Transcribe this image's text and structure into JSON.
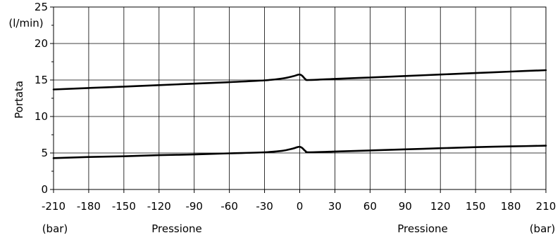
{
  "chart_data": {
    "type": "line",
    "ylabel": "Portata",
    "yunit": "(l/min)",
    "xlabel_left": "Pressione",
    "xlabel_right": "Pressione",
    "xunit_left": "(bar)",
    "xunit_right": "(bar)",
    "xlim": [
      -210,
      210
    ],
    "ylim": [
      0,
      25
    ],
    "x_ticks": [
      -210,
      -180,
      -150,
      -120,
      -90,
      -60,
      -30,
      0,
      30,
      60,
      90,
      120,
      150,
      180,
      210
    ],
    "x_tick_labels": [
      "-210",
      "-180",
      "-150",
      "-120",
      "-90",
      "-60",
      "-30",
      "0",
      "30",
      "60",
      "90",
      "120",
      "150",
      "180",
      "210"
    ],
    "y_ticks": [
      0,
      5,
      10,
      15,
      20,
      25
    ],
    "y_tick_labels": [
      "0",
      "5",
      "10",
      "15",
      "20",
      "25"
    ],
    "grid": true,
    "series": [
      {
        "x": [
          -210,
          -180,
          -150,
          -120,
          -90,
          -60,
          -30,
          -15,
          -6,
          -2,
          0,
          2,
          5,
          8,
          30,
          60,
          90,
          120,
          150,
          180,
          210
        ],
        "y": [
          13.7,
          13.9,
          14.1,
          14.3,
          14.5,
          14.7,
          14.95,
          15.2,
          15.5,
          15.7,
          15.75,
          15.6,
          15.1,
          15.0,
          15.15,
          15.35,
          15.55,
          15.75,
          15.95,
          16.15,
          16.35
        ]
      },
      {
        "x": [
          -210,
          -180,
          -150,
          -120,
          -90,
          -60,
          -30,
          -15,
          -6,
          -2,
          0,
          2,
          5,
          8,
          30,
          60,
          90,
          120,
          150,
          180,
          210
        ],
        "y": [
          4.3,
          4.45,
          4.55,
          4.7,
          4.8,
          4.95,
          5.1,
          5.3,
          5.6,
          5.8,
          5.85,
          5.7,
          5.25,
          5.1,
          5.2,
          5.35,
          5.5,
          5.65,
          5.8,
          5.9,
          6.0
        ]
      }
    ]
  }
}
